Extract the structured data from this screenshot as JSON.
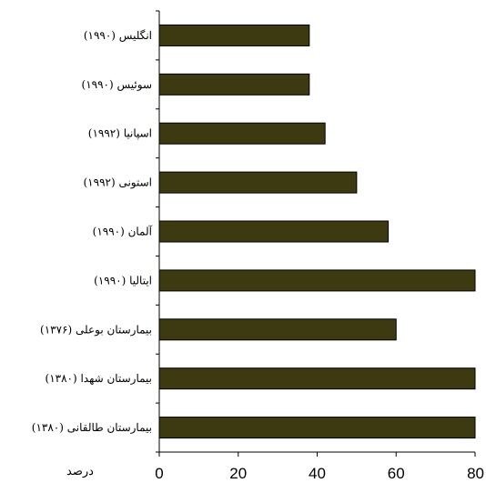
{
  "chart_data": {
    "type": "bar",
    "orientation": "horizontal",
    "categories": [
      "انگلیس (۱۹۹۰)",
      "سوئیس (۱۹۹۰)",
      "اسپانیا (۱۹۹۲)",
      "استونی (۱۹۹۲)",
      "آلمان (۱۹۹۰)",
      "ایتالیا (۱۹۹۰)",
      "بیمارستان بوعلی (۱۳۷۶)",
      "بیمارستان شهدا (۱۳۸۰)",
      "بیمارستان طالقانی (۱۳۸۰)"
    ],
    "values": [
      38,
      38,
      42,
      50,
      58,
      80,
      60,
      80,
      80
    ],
    "x_ticks": [
      0,
      20,
      40,
      60,
      80
    ],
    "xlim": [
      0,
      80
    ],
    "xlabel": "درصد",
    "bar_color": "#3d3911",
    "grid": false,
    "legend": "none"
  }
}
